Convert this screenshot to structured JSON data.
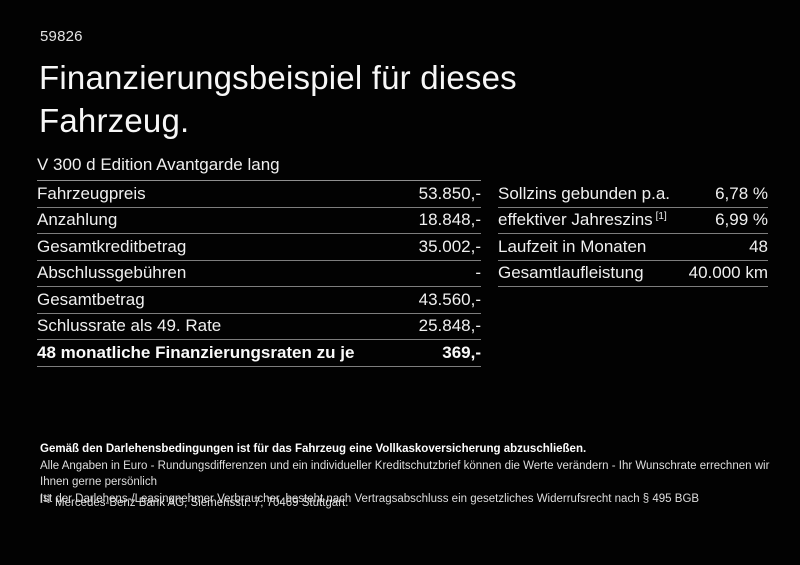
{
  "page": {
    "ref_number": "59826",
    "title_line1": "Finanzierungsbeispiel für dieses",
    "title_line2": "Fahrzeug.",
    "subtitle": "V 300 d Edition Avantgarde lang"
  },
  "left_table": {
    "rows": [
      {
        "label": "Fahrzeugpreis",
        "value": "53.850,-"
      },
      {
        "label": "Anzahlung",
        "value": "18.848,-"
      },
      {
        "label": "Gesamtkreditbetrag",
        "value": "35.002,-"
      },
      {
        "label": "Abschlussgebühren",
        "value": "-"
      },
      {
        "label": "Gesamtbetrag",
        "value": "43.560,-"
      },
      {
        "label": "Schlussrate als 49. Rate",
        "value": "25.848,-"
      },
      {
        "label": "48 monatliche Finanzierungsraten zu je",
        "value": "369,-"
      }
    ]
  },
  "right_table": {
    "rows": [
      {
        "label": "Sollzins gebunden p.a.",
        "value": "6,78 %"
      },
      {
        "label": "effektiver Jahreszins",
        "sup": "[1]",
        "value": "6,99 %"
      },
      {
        "label": "Laufzeit in Monaten",
        "value": "48"
      },
      {
        "label": "Gesamtlaufleistung",
        "value": "40.000 km"
      }
    ]
  },
  "footer": {
    "line_bold": "Gemäß den Darlehensbedingungen ist für das Fahrzeug eine Vollkaskoversicherung abzuschließen.",
    "line2": "Alle Angaben in Euro - Rundungsdifferenzen und ein individueller Kreditschutzbrief können die Werte verändern - Ihr Wunschrate errechnen wir Ihnen gerne persönlich",
    "line3": "Ist der Darlehens-/Leasingnehmer Verbraucher, besteht nach Vertragsabschluss ein gesetzliches Widerrufsrecht nach § 495 BGB",
    "footnote_marker": "[1]",
    "footnote_text": "Mercedes-Benz Bank AG, Siemensstr. 7, 70469 Stuttgart."
  },
  "colors": {
    "background": "#020202",
    "text": "#f2f2f2",
    "divider": "#7d7d7d"
  }
}
